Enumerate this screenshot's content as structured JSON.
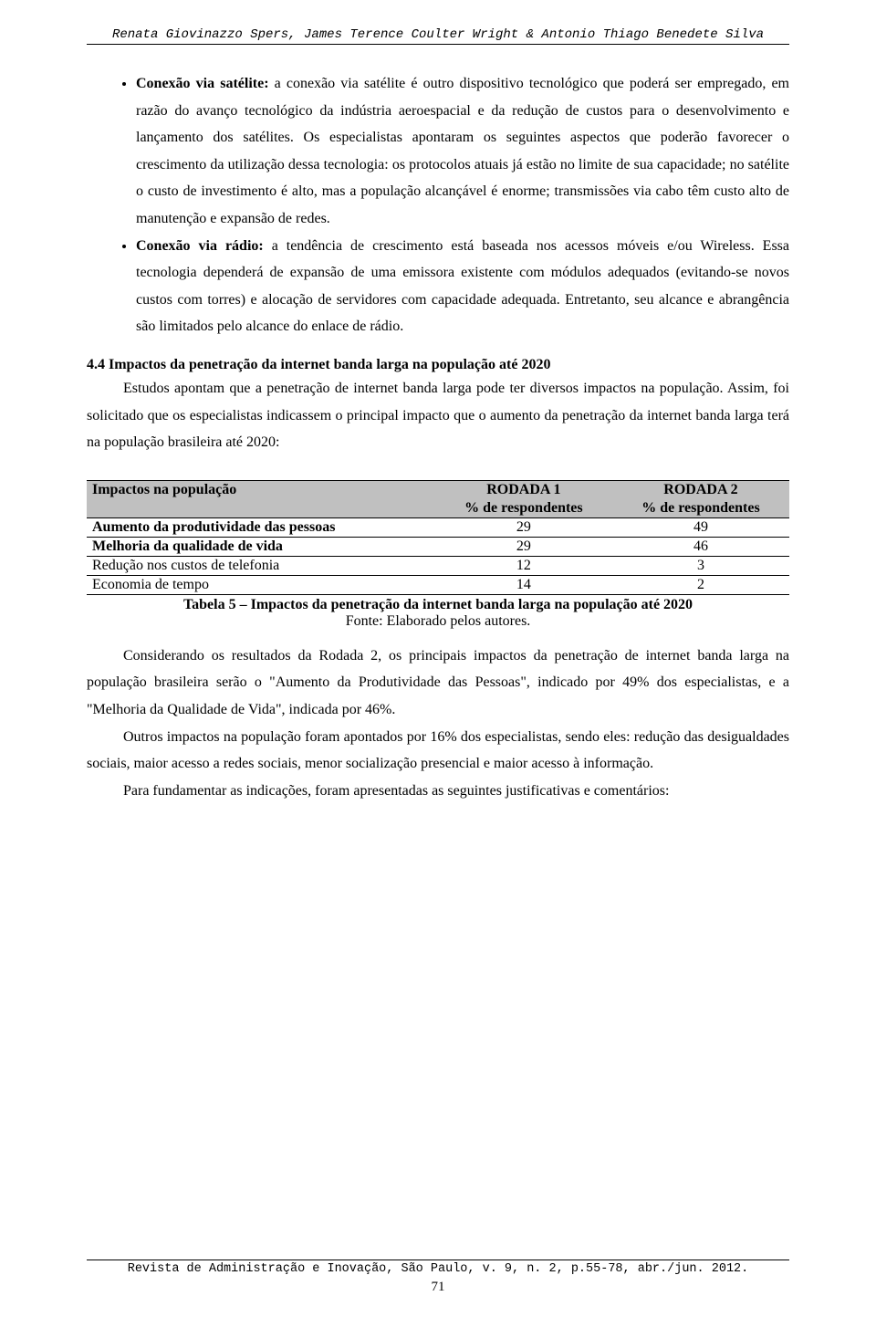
{
  "header": {
    "authors": "Renata Giovinazzo Spers, James Terence Coulter Wright & Antonio Thiago Benedete Silva"
  },
  "bullets": [
    {
      "lead": "Conexão via satélite:",
      "text": " a conexão via satélite é outro dispositivo tecnológico que poderá ser empregado, em razão do avanço tecnológico da indústria aeroespacial e da redução de custos para o desenvolvimento e lançamento dos satélites. Os especialistas apontaram os seguintes aspectos que poderão favorecer o crescimento da utilização dessa tecnologia: os protocolos atuais já estão no limite de sua capacidade; no satélite o custo de investimento é alto, mas a população alcançável é enorme; transmissões via cabo têm custo alto de manutenção e expansão de redes."
    },
    {
      "lead": "Conexão via rádio:",
      "text": " a tendência de crescimento está baseada nos acessos móveis e/ou Wireless. Essa tecnologia dependerá de expansão de uma emissora existente com módulos adequados (evitando-se novos custos com torres) e alocação de servidores com capacidade adequada. Entretanto, seu alcance e abrangência são limitados pelo alcance do enlace de rádio."
    }
  ],
  "section": {
    "title": "4.4 Impactos da penetração da internet banda larga na população até 2020",
    "p1": "Estudos apontam que a penetração de internet banda larga pode ter diversos impactos na população. Assim, foi solicitado que os especialistas indicassem o principal impacto que o aumento da penetração da internet banda larga terá na população brasileira até 2020:"
  },
  "table": {
    "header_col1": "Impactos na população",
    "header_col2": "RODADA 1",
    "header_col3": "RODADA 2",
    "sub2": "% de respondentes",
    "sub3": "% de respondentes",
    "rows": [
      {
        "label": "Aumento da produtividade das pessoas",
        "r1": "29",
        "r2": "49",
        "bold": true
      },
      {
        "label": "Melhoria da qualidade de vida",
        "r1": "29",
        "r2": "46",
        "bold": true
      },
      {
        "label": "Redução nos custos de telefonia",
        "r1": "12",
        "r2": "3",
        "bold": false
      },
      {
        "label": "Economia de tempo",
        "r1": "14",
        "r2": "2",
        "bold": false
      }
    ],
    "caption": "Tabela 5 – Impactos da penetração da internet banda larga na população até 2020",
    "source": "Fonte: Elaborado pelos autores.",
    "header_bg": "#c0c0c0",
    "border_color": "#000000"
  },
  "after": {
    "p1": "Considerando os resultados da Rodada 2, os principais impactos da penetração de internet banda larga na população brasileira serão o \"Aumento da Produtividade das Pessoas\", indicado por 49% dos especialistas, e a \"Melhoria da Qualidade de Vida\", indicada por 46%.",
    "p2": "Outros impactos na população foram apontados por 16% dos especialistas, sendo eles: redução das desigualdades sociais, maior acesso a redes sociais, menor socialização presencial e maior acesso à informação.",
    "p3": "Para fundamentar as indicações, foram apresentadas as seguintes justificativas e comentários:"
  },
  "footer": {
    "journal": "Revista de Administração e Inovação, São Paulo, v. 9, n. 2, p.55-78, abr./jun. 2012.",
    "page": "71"
  }
}
